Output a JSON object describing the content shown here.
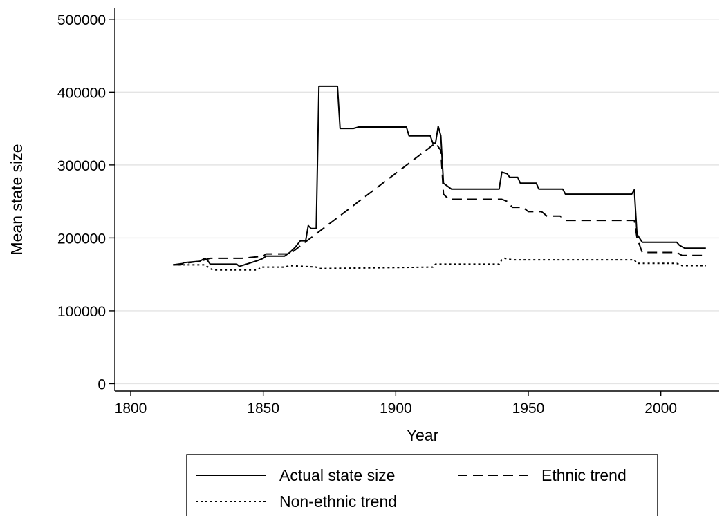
{
  "chart_data": {
    "type": "line",
    "xlabel": "Year",
    "ylabel": "Mean state size",
    "xlim": [
      1794,
      2022
    ],
    "ylim": [
      -10000,
      515000
    ],
    "xticks": [
      "1800",
      "1850",
      "1900",
      "1950",
      "2000"
    ],
    "yticks": [
      "0",
      "100000",
      "200000",
      "300000",
      "400000",
      "500000"
    ],
    "grid": true,
    "legend_position": "bottom",
    "series": [
      {
        "name": "Actual state size",
        "dash": "solid",
        "x": [
          1816,
          1819,
          1820,
          1826,
          1828,
          1829,
          1830,
          1840,
          1841,
          1848,
          1850,
          1851,
          1858,
          1860,
          1862,
          1864,
          1866,
          1867,
          1868,
          1870,
          1871,
          1878,
          1879,
          1884,
          1886,
          1904,
          1905,
          1913,
          1914,
          1915,
          1916,
          1917,
          1918,
          1921,
          1939,
          1940,
          1942,
          1943,
          1946,
          1947,
          1953,
          1954,
          1963,
          1964,
          1989,
          1990,
          1991,
          1993,
          2006,
          2007,
          2009,
          2017
        ],
        "y": [
          163000,
          163000,
          166000,
          168000,
          172000,
          169000,
          164000,
          164000,
          161000,
          169000,
          172000,
          175000,
          175000,
          180000,
          187000,
          196000,
          196000,
          217000,
          213000,
          213000,
          408000,
          408000,
          350000,
          350000,
          352000,
          352000,
          340000,
          340000,
          330000,
          330000,
          353000,
          340000,
          275000,
          267000,
          267000,
          290000,
          288000,
          283000,
          283000,
          275000,
          275000,
          267000,
          267000,
          260000,
          260000,
          266000,
          205000,
          194000,
          194000,
          190000,
          186000,
          186000
        ]
      },
      {
        "name": "Ethnic trend",
        "dash": "dashed",
        "x": [
          1816,
          1826,
          1828,
          1830,
          1840,
          1842,
          1850,
          1851,
          1860,
          1915,
          1917,
          1918,
          1920,
          1940,
          1942,
          1944,
          1948,
          1950,
          1955,
          1957,
          1962,
          1964,
          1989,
          1990,
          1991,
          1993,
          2006,
          2008,
          2017
        ],
        "y": [
          163000,
          168000,
          170000,
          172000,
          172000,
          172000,
          175000,
          178000,
          178000,
          330000,
          320000,
          260000,
          253000,
          253000,
          250000,
          242000,
          242000,
          236000,
          236000,
          230000,
          230000,
          224000,
          224000,
          224000,
          200000,
          180000,
          180000,
          176000,
          176000
        ]
      },
      {
        "name": "Non-ethnic trend",
        "dash": "dotted",
        "x": [
          1816,
          1828,
          1830,
          1831,
          1848,
          1849,
          1858,
          1860,
          1870,
          1871,
          1914,
          1915,
          1939,
          1940,
          1941,
          1944,
          1946,
          1989,
          1990,
          1991,
          2006,
          2008,
          2017
        ],
        "y": [
          163000,
          163000,
          158000,
          156000,
          156000,
          160000,
          160000,
          162000,
          160000,
          158000,
          160000,
          164000,
          164000,
          170000,
          172000,
          170000,
          170000,
          170000,
          170000,
          165000,
          165000,
          162000,
          162000
        ]
      }
    ]
  }
}
